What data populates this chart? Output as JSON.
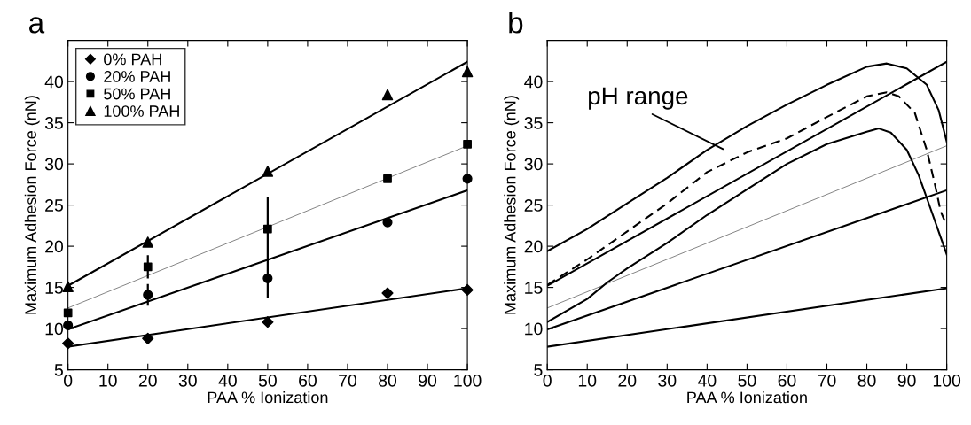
{
  "chart_data": [
    {
      "type": "scatter",
      "title": "a",
      "xlabel": "PAA % Ionization",
      "ylabel": "Maximum Adhesion Force (nN)",
      "xlim": [
        0,
        100
      ],
      "ylim": [
        5,
        45
      ],
      "xticks": [
        0,
        10,
        20,
        30,
        40,
        50,
        60,
        70,
        80,
        90,
        100
      ],
      "yticks": [
        5,
        10,
        15,
        20,
        25,
        30,
        35,
        40
      ],
      "legend": "top left",
      "grid": false,
      "series": [
        {
          "name": "0% PAH",
          "color": "#000000",
          "marker": "diamond",
          "x": [
            0,
            20,
            50,
            80,
            100
          ],
          "values": [
            8.2,
            8.8,
            10.8,
            14.3,
            14.7
          ]
        },
        {
          "name": "20% PAH",
          "color": "#000000",
          "marker": "circle",
          "x": [
            0,
            20,
            50,
            80,
            100
          ],
          "values": [
            10.4,
            14.1,
            16.1,
            22.9,
            28.2
          ],
          "errors": [
            null,
            [
              12.9,
              15.3
            ],
            [
              13.9,
              18.3
            ],
            null,
            null
          ]
        },
        {
          "name": "50% PAH",
          "color": "#000000",
          "marker": "square",
          "x": [
            0,
            20,
            50,
            80,
            100
          ],
          "values": [
            11.9,
            17.5,
            22.1,
            28.2,
            32.4
          ],
          "errors": [
            null,
            [
              16.2,
              18.8
            ],
            [
              18.3,
              25.9
            ],
            null,
            null
          ]
        },
        {
          "name": "100% PAH",
          "color": "#000000",
          "marker": "triangle",
          "x": [
            0,
            20,
            50,
            80,
            100
          ],
          "values": [
            15.1,
            20.5,
            29.1,
            38.4,
            41.2
          ]
        },
        {
          "type": "line",
          "color": "#000000",
          "x": [
            0,
            100
          ],
          "values": [
            7.8,
            14.9
          ]
        },
        {
          "type": "line",
          "color": "#000000",
          "x": [
            0,
            100
          ],
          "values": [
            9.9,
            26.8
          ]
        },
        {
          "type": "line",
          "color": "#808080",
          "x": [
            0,
            100
          ],
          "values": [
            12.5,
            32.2
          ]
        },
        {
          "type": "line",
          "color": "#000000",
          "x": [
            0,
            100
          ],
          "values": [
            15.2,
            42.4
          ]
        }
      ]
    },
    {
      "type": "line",
      "title": "b",
      "xlabel": "PAA % Ionization",
      "ylabel": "Maximum Adhesion Force (nN)",
      "xlim": [
        0,
        100
      ],
      "ylim": [
        5,
        45
      ],
      "xticks": [
        0,
        10,
        20,
        30,
        40,
        50,
        60,
        70,
        80,
        90,
        100
      ],
      "yticks": [
        5,
        10,
        15,
        20,
        25,
        30,
        35,
        40
      ],
      "legend": false,
      "grid": false,
      "annotations": [
        "pH range"
      ],
      "series": [
        {
          "color": "#000000",
          "x": [
            0,
            100
          ],
          "values": [
            7.8,
            14.9
          ]
        },
        {
          "color": "#000000",
          "x": [
            0,
            100
          ],
          "values": [
            9.9,
            26.8
          ]
        },
        {
          "color": "#808080",
          "x": [
            0,
            100
          ],
          "values": [
            12.5,
            32.2
          ]
        },
        {
          "color": "#000000",
          "x": [
            0,
            100
          ],
          "values": [
            15.2,
            42.4
          ]
        },
        {
          "color": "#000000",
          "x": [
            0,
            10,
            20,
            30,
            40,
            50,
            60,
            70,
            80,
            85,
            90,
            95,
            98,
            100
          ],
          "values": [
            19.4,
            22.1,
            25.2,
            28.3,
            31.7,
            34.6,
            37.2,
            39.6,
            41.8,
            42.2,
            41.6,
            39.6,
            36.5,
            32.7
          ]
        },
        {
          "color": "#000000",
          "x": [
            0,
            10,
            15,
            20,
            30,
            40,
            50,
            60,
            70,
            80,
            83,
            86,
            90,
            93,
            96,
            100
          ],
          "values": [
            10.8,
            13.6,
            15.6,
            17.3,
            20.4,
            23.8,
            26.9,
            30.0,
            32.4,
            33.9,
            34.3,
            33.8,
            31.7,
            28.6,
            24.5,
            19.0
          ]
        },
        {
          "color": "#000000",
          "line_style": "dashed",
          "x": [
            0,
            10,
            20,
            30,
            40,
            50,
            60,
            70,
            80,
            85,
            88,
            92,
            95,
            97,
            98.5,
            100
          ],
          "values": [
            15.3,
            18.4,
            21.8,
            25.2,
            29.0,
            31.4,
            33.1,
            35.7,
            38.2,
            38.7,
            38.2,
            36.2,
            31.7,
            27.6,
            24.2,
            22.5
          ]
        }
      ]
    }
  ]
}
